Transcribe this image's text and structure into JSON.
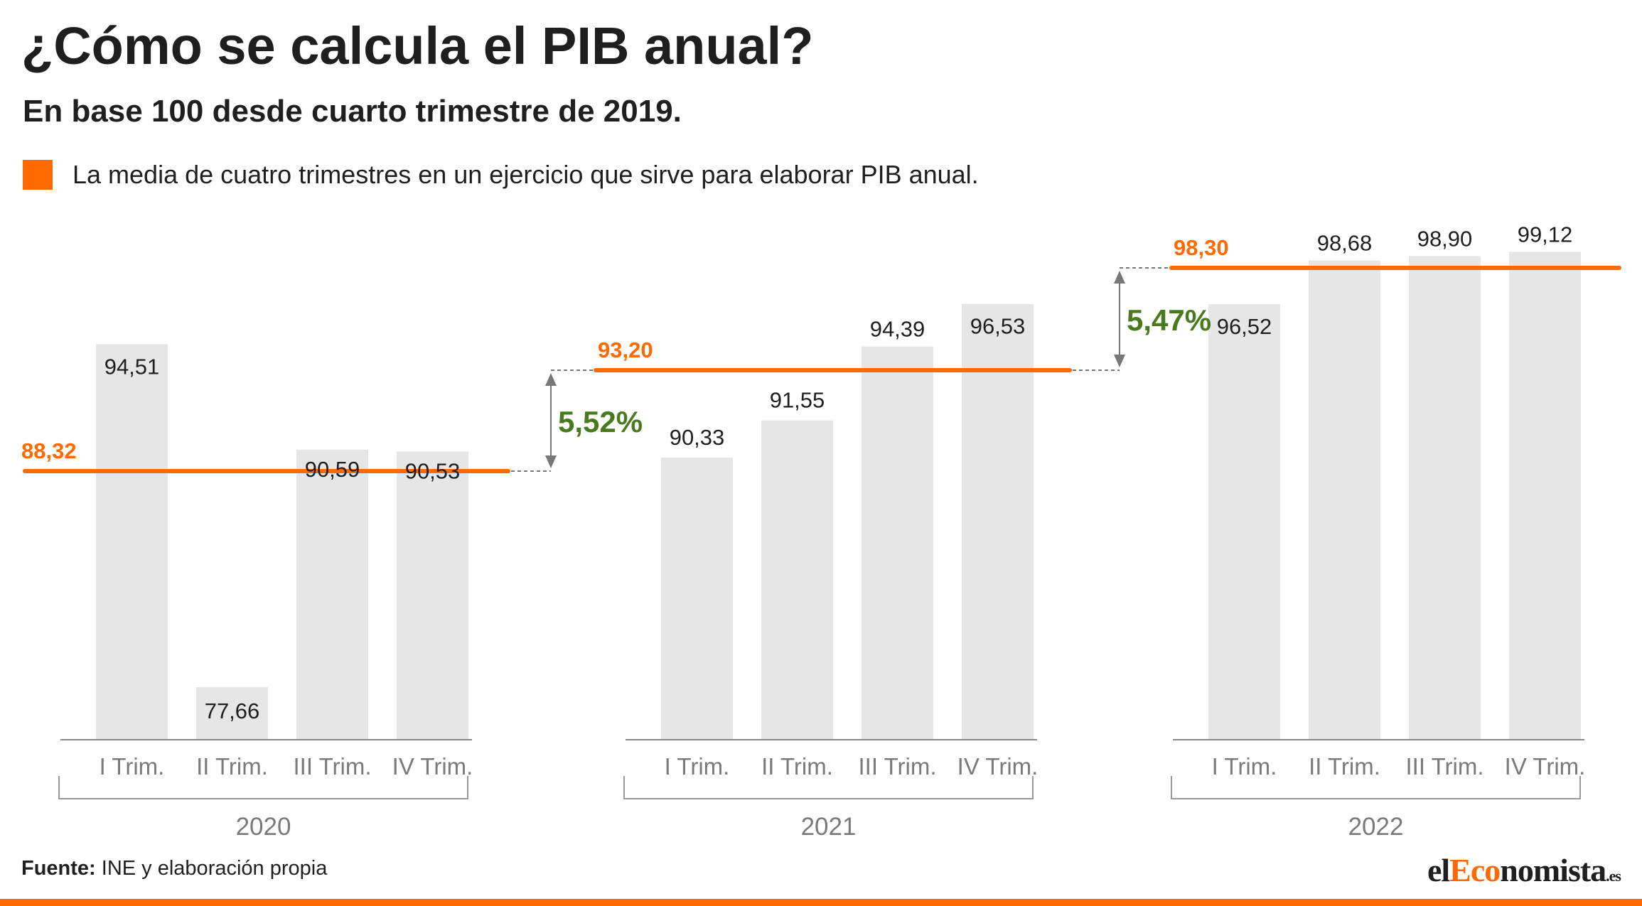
{
  "title": "¿Cómo se calcula el PIB anual?",
  "subtitle": "En base 100 desde cuarto trimestre de 2019.",
  "legend": {
    "label": "La media de cuatro trimestres en un ejercicio que sirve para elaborar PIB anual.",
    "color": "#ff6a00"
  },
  "source": {
    "prefix": "Fuente:",
    "text": " INE y elaboración propia"
  },
  "logo": {
    "part1": "el",
    "part2": "Eco",
    "part3": "nomista",
    "part4": ".es"
  },
  "colors": {
    "bar": "#e6e6e6",
    "average": "#ff6a00",
    "growth": "#4a7a1e",
    "axis": "#888888",
    "text": "#1f1f1f",
    "connector": "#777777"
  },
  "chart_data": {
    "type": "bar",
    "categories": [
      "I Trim.",
      "II Trim.",
      "III Trim.",
      "IV Trim."
    ],
    "groups": [
      {
        "year": "2020",
        "values": [
          94.51,
          77.66,
          90.59,
          90.53
        ],
        "labels": [
          "94,51",
          "77,66",
          "90,59",
          "90,53"
        ],
        "average": 88.32,
        "average_label": "88,32"
      },
      {
        "year": "2021",
        "values": [
          90.33,
          91.55,
          94.39,
          96.53
        ],
        "labels": [
          "90,33",
          "91,55",
          "94,39",
          "96,53"
        ],
        "average": 93.2,
        "average_label": "93,20"
      },
      {
        "year": "2022",
        "values": [
          96.52,
          98.68,
          98.9,
          99.12
        ],
        "labels": [
          "96,52",
          "98,68",
          "98,90",
          "99,12"
        ],
        "average": 98.3,
        "average_label": "98,30"
      }
    ],
    "growth": [
      {
        "from": "2020",
        "to": "2021",
        "label": "5,52%"
      },
      {
        "from": "2021",
        "to": "2022",
        "label": "5,47%"
      }
    ]
  }
}
